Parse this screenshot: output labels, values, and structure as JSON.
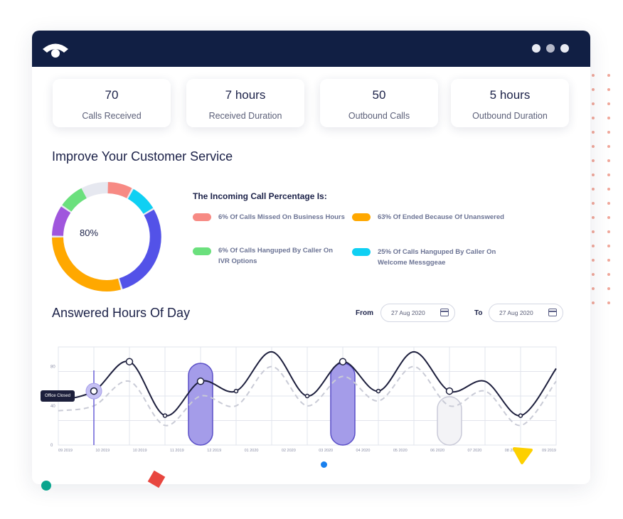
{
  "stats": [
    {
      "value": "70",
      "label": "Calls Received"
    },
    {
      "value": "7 hours",
      "label": "Received Duration"
    },
    {
      "value": "50",
      "label": "Outbound Calls"
    },
    {
      "value": "5 hours",
      "label": "Outbound Duration"
    }
  ],
  "section1": {
    "title": "Improve Your Customer Service",
    "donut_center": "80%",
    "legend_title": "The Incoming Call Percentage Is:",
    "legend": [
      {
        "text": "6% Of Calls Missed On Business Hours",
        "color": "#f78a84"
      },
      {
        "text": "63% Of Ended Because Of Unanswered",
        "color": "#ffa800"
      },
      {
        "text": "6% Of Calls Hanguped By Caller On IVR Options",
        "color": "#6be07d"
      },
      {
        "text": "25% Of Calls Hanguped By Caller On Welcome Messggeae",
        "color": "#0fd0f3"
      }
    ]
  },
  "section2": {
    "title": "Answered Hours Of Day",
    "from_label": "From",
    "from_value": "27 Aug 2020",
    "to_label": "To",
    "to_value": "27 Aug 2020",
    "tooltip": "Office Closed"
  },
  "chart_data": {
    "type": "line",
    "y_ticks": [
      "80",
      "40",
      "0"
    ],
    "x_ticks": [
      "09 2019",
      "10 2019",
      "10 2019",
      "11 2019",
      "12 2019",
      "01 2020",
      "02 2020",
      "03 2020",
      "04 2020",
      "05 2020",
      "06 2020",
      "07 2020",
      "08 2020",
      "09 2019"
    ],
    "series": [
      {
        "name": "answered",
        "values": [
          45,
          55,
          85,
          30,
          65,
          55,
          95,
          50,
          85,
          55,
          95,
          55,
          65,
          30,
          78
        ]
      },
      {
        "name": "previous",
        "values": [
          35,
          40,
          65,
          20,
          50,
          40,
          80,
          40,
          70,
          45,
          80,
          40,
          55,
          20,
          65
        ]
      }
    ]
  },
  "colors": {
    "navy": "#111f44",
    "purple": "#5b54e6",
    "highlight": "#a49ce9"
  }
}
